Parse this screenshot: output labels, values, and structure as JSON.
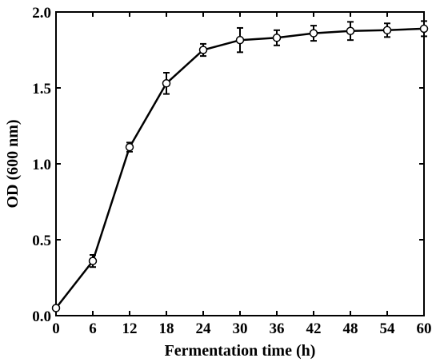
{
  "chart_data": {
    "type": "line",
    "xlabel": "Fermentation time (h)",
    "ylabel": "OD (600 nm)",
    "xlim": [
      0,
      60
    ],
    "ylim": [
      0,
      2.0
    ],
    "xticks": [
      0,
      6,
      12,
      18,
      24,
      30,
      36,
      42,
      48,
      54,
      60
    ],
    "yticks": [
      "0.0",
      "0.5",
      "1.0",
      "1.5",
      "2.0"
    ],
    "grid": false,
    "series": [
      {
        "marker": "open-circle",
        "color": "#000000",
        "x": [
          0,
          6,
          12,
          18,
          24,
          30,
          36,
          42,
          48,
          54,
          60
        ],
        "y": [
          0.05,
          0.36,
          1.11,
          1.53,
          1.75,
          1.815,
          1.83,
          1.86,
          1.875,
          1.88,
          1.89
        ],
        "error": [
          0.0,
          0.04,
          0.03,
          0.07,
          0.04,
          0.08,
          0.05,
          0.05,
          0.06,
          0.045,
          0.05
        ]
      }
    ]
  }
}
